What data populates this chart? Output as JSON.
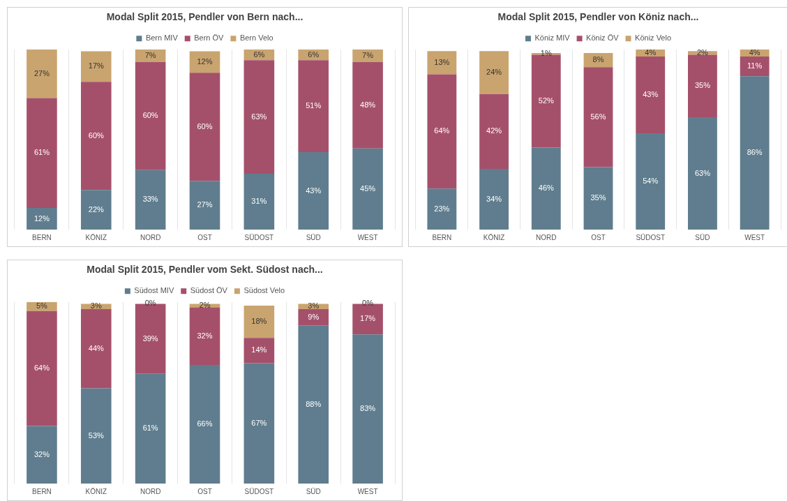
{
  "chart_data": [
    {
      "type": "bar",
      "stacked": true,
      "title": "Modal Split 2015, Pendler von Bern nach...",
      "categories": [
        "BERN",
        "KÖNIZ",
        "NORD",
        "OST",
        "SÜDOST",
        "SÜD",
        "WEST"
      ],
      "ylim": [
        0,
        100
      ],
      "tick_labels": "x",
      "grid": "x",
      "legend": "top",
      "series": [
        {
          "name": "Bern MIV",
          "color": "#5f7d8e",
          "values": [
            12,
            22,
            33,
            27,
            31,
            43,
            45
          ],
          "value_labels": [
            "12%",
            "22%",
            "33%",
            "27%",
            "31%",
            "43%",
            "45%"
          ]
        },
        {
          "name": "Bern ÖV",
          "color": "#a5506b",
          "values": [
            61,
            60,
            60,
            60,
            63,
            51,
            48
          ],
          "value_labels": [
            "61%",
            "60%",
            "60%",
            "60%",
            "63%",
            "51%",
            "48%"
          ]
        },
        {
          "name": "Bern Velo",
          "color": "#c9a46f",
          "values": [
            27,
            17,
            7,
            12,
            6,
            6,
            7
          ],
          "value_labels": [
            "27%",
            "17%",
            "7%",
            "12%",
            "6%",
            "6%",
            "7%"
          ]
        }
      ]
    },
    {
      "type": "bar",
      "stacked": true,
      "title": "Modal Split 2015, Pendler von Köniz nach...",
      "categories": [
        "BERN",
        "KÖNIZ",
        "NORD",
        "OST",
        "SÜDOST",
        "SÜD",
        "WEST"
      ],
      "ylim": [
        0,
        101
      ],
      "tick_labels": "x",
      "grid": "x",
      "legend": "top",
      "series": [
        {
          "name": "Köniz MIV",
          "color": "#5f7d8e",
          "values": [
            23,
            34,
            46,
            35,
            54,
            63,
            86
          ],
          "value_labels": [
            "23%",
            "34%",
            "46%",
            "35%",
            "54%",
            "63%",
            "86%"
          ]
        },
        {
          "name": "Köniz ÖV",
          "color": "#a5506b",
          "values": [
            64,
            42,
            52,
            56,
            43,
            35,
            11
          ],
          "value_labels": [
            "64%",
            "42%",
            "52%",
            "56%",
            "43%",
            "35%",
            "11%"
          ]
        },
        {
          "name": "Köniz Velo",
          "color": "#c9a46f",
          "values": [
            13,
            24,
            1,
            8,
            4,
            2,
            4
          ],
          "value_labels": [
            "13%",
            "24%",
            "1%",
            "8%",
            "4%",
            "2%",
            "4%"
          ]
        }
      ]
    },
    {
      "type": "bar",
      "stacked": true,
      "title": "Modal Split 2015, Pendler vom Sekt. Südost nach...",
      "categories": [
        "BERN",
        "KÖNIZ",
        "NORD",
        "OST",
        "SÜDOST",
        "SÜD",
        "WEST"
      ],
      "ylim": [
        0,
        101
      ],
      "tick_labels": "x",
      "grid": "x",
      "legend": "top",
      "series": [
        {
          "name": "Südost MIV",
          "color": "#5f7d8e",
          "values": [
            32,
            53,
            61,
            66,
            67,
            88,
            83
          ],
          "value_labels": [
            "32%",
            "53%",
            "61%",
            "66%",
            "67%",
            "88%",
            "83%"
          ]
        },
        {
          "name": "Südost ÖV",
          "color": "#a5506b",
          "values": [
            64,
            44,
            39,
            32,
            14,
            9,
            17
          ],
          "value_labels": [
            "64%",
            "44%",
            "39%",
            "32%",
            "14%",
            "9%",
            "17%"
          ]
        },
        {
          "name": "Südost Velo",
          "color": "#c9a46f",
          "values": [
            5,
            3,
            0,
            2,
            18,
            3,
            0
          ],
          "value_labels": [
            "5%",
            "3%",
            "0%",
            "2%",
            "18%",
            "3%",
            "0%"
          ]
        }
      ]
    }
  ]
}
